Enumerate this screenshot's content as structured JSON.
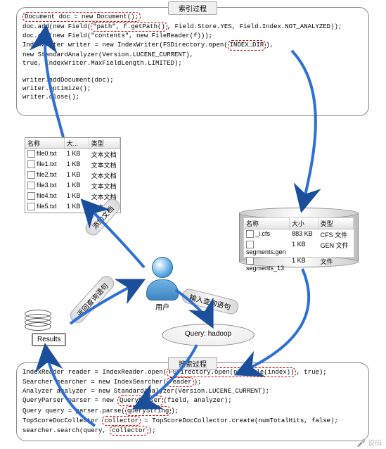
{
  "indexBox": {
    "title": "索引过程",
    "lines": [
      {
        "pre": "",
        "hl": "Document doc = new Document();",
        "post": ""
      },
      {
        "pre": "doc.add(new Field(",
        "hl": "\"path\", f.getPath()",
        "post": ", Field.Store.YES, Field.Index.NOT_ANALYZED));"
      },
      {
        "pre": "doc.add(new Field(\"contents\", new FileReader(f)));",
        "hl": "",
        "post": ""
      },
      {
        "pre": "IndexWriter writer = new IndexWriter(FSDirectory.open(",
        "hl": "INDEX_DIR",
        "post": "),"
      },
      {
        "pre": "                                        new StandardAnalyzer(Version.LUCENE_CURRENT),",
        "hl": "",
        "post": ""
      },
      {
        "pre": "                                        true, IndexWriter.MaxFieldLength.LIMITED);",
        "hl": "",
        "post": ""
      },
      {
        "pre": "",
        "hl": "",
        "post": ""
      },
      {
        "pre": "writer.addDocument(doc);",
        "hl": "",
        "post": ""
      },
      {
        "pre": "writer.optimize();",
        "hl": "",
        "post": ""
      },
      {
        "pre": "writer.close();",
        "hl": "",
        "post": ""
      }
    ]
  },
  "filesLeft": {
    "headers": {
      "name": "名称",
      "size": "大...",
      "type": "类型"
    },
    "rows": [
      {
        "name": "file0.txt",
        "size": "1 KB",
        "type": "文本文档"
      },
      {
        "name": "file1.txt",
        "size": "1 KB",
        "type": "文本文档"
      },
      {
        "name": "file2.txt",
        "size": "1 KB",
        "type": "文本文档"
      },
      {
        "name": "file3.txt",
        "size": "1 KB",
        "type": "文本文档"
      },
      {
        "name": "file4.txt",
        "size": "1 KB",
        "type": "文本文档"
      },
      {
        "name": "file5.txt",
        "size": "1 KB",
        "type": "文本文档"
      }
    ]
  },
  "cylinder": {
    "headers": {
      "name": "名称",
      "size": "大小",
      "type": "类型"
    },
    "rows": [
      {
        "name": "_i.cfs",
        "size": "883 KB",
        "type": "CFS 文件"
      },
      {
        "name": "segments.gen",
        "size": "1 KB",
        "type": "GEN 文件"
      },
      {
        "name": "segments_13",
        "size": "1 KB",
        "type": "文件"
      }
    ]
  },
  "labels": {
    "addDoc": "添加文档",
    "inputQuery": "输入查询语句",
    "returnQuery": "返回查询语句",
    "user": "用户",
    "results": "Results",
    "query": "Query: hadoop"
  },
  "searchBox": {
    "title": "搜索过程",
    "lines": [
      {
        "pre": "IndexReader reader = IndexReader.open(",
        "hl": "FSDirectory.open(new File(index))",
        "post": ", true);"
      },
      {
        "pre": "Searcher searcher = new IndexSearcher(",
        "hl": "reader",
        "post": ");"
      },
      {
        "pre": "Analyzer analyzer = new StandardAnalyzer(Version.LUCENE_CURRENT);",
        "hl": "",
        "post": ""
      },
      {
        "pre": "QueryParser parser = new ",
        "hl": "QueryParser",
        "post": "(field, analyzer);"
      },
      {
        "pre": "Query query = parser.parse(",
        "hl": "queryString",
        "post": ");"
      },
      {
        "pre": "TopScoreDocCollector ",
        "hl": "collector",
        "post": " = TopScoreDocCollector.create(numTotalHits, false);"
      },
      {
        "pre": "searcher.search(query, ",
        "hl": "collector",
        "post": ");"
      }
    ]
  },
  "watermark": "🎤 说码",
  "colors": {
    "arrow": "#2e6fd4",
    "arrowHead": "#1b4f9c"
  }
}
